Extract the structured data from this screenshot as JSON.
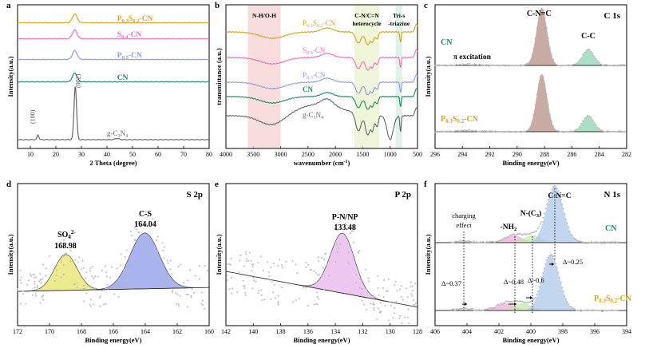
{
  "chart_data": [
    {
      "id": "a",
      "type": "line",
      "panel_label": "a",
      "xlabel": "2 Theta (degree)",
      "ylabel": "Intensity(a.u.)",
      "xlim": [
        5,
        80
      ],
      "xticks": [
        "10",
        "20",
        "30",
        "40",
        "50",
        "60",
        "70",
        "80"
      ],
      "series": [
        {
          "name": "P0.3S0.2-CN",
          "label": "P",
          "sub1": "0.3",
          "mid": "S",
          "sub2": "0.2",
          "suffix": "-CN",
          "color": "#d9a21b",
          "peak_2theta": 27.4
        },
        {
          "name": "S0.4-CN",
          "label": "S",
          "sub1": "0.4",
          "suffix": "-CN",
          "color": "#ea6fb8",
          "peak_2theta": 27.4
        },
        {
          "name": "P0.5-CN",
          "label": "P",
          "sub1": "0.5",
          "suffix": "-CN",
          "color": "#8d9be0",
          "peak_2theta": 27.4
        },
        {
          "name": "CN",
          "label": "CN",
          "color": "#1f8a5a",
          "peak_2theta": 27.4
        },
        {
          "name": "g-C3N4",
          "label": "g-C",
          "sub1": "3",
          "mid": "N",
          "sub2": "4",
          "color": "#666666",
          "peak_2theta": 27.6
        }
      ],
      "annotations": [
        "(100)",
        "(002)"
      ]
    },
    {
      "id": "b",
      "type": "line",
      "panel_label": "b",
      "xlabel": "wavenumber (cm",
      "xlabel_sup": "-1",
      "xlabel_end": ")",
      "ylabel": "transmittance (a.u.)",
      "xlim": [
        4000,
        500
      ],
      "xticks": [
        "4000",
        "3500",
        "3000",
        "2500",
        "2000",
        "1500",
        "1000",
        "500"
      ],
      "regions": [
        {
          "label": "N-H/O-H",
          "from": 3600,
          "to": 3000,
          "color": "#f7d3d6"
        },
        {
          "label": "C-N/C=N",
          "label2": "heterocycle",
          "from": 1650,
          "to": 1200,
          "color": "#eaf3cf"
        },
        {
          "label": "Tri-s",
          "label2": "-triazine",
          "from": 900,
          "to": 780,
          "color": "#d6efe5"
        }
      ],
      "series": [
        {
          "name": "P0.3S0.2-CN",
          "label": "P",
          "sub1": "0.3",
          "mid": "S",
          "sub2": "0.2",
          "suffix": "-CN",
          "color": "#d9a21b"
        },
        {
          "name": "S0.4-CN",
          "label": "S",
          "sub1": "0.4",
          "suffix": "-CN",
          "color": "#ea6fb8"
        },
        {
          "name": "P0.5-CN",
          "label": "P",
          "sub1": "0.5",
          "suffix": "-CN",
          "color": "#8d9be0"
        },
        {
          "name": "CN",
          "label": "CN",
          "color": "#1f8a5a"
        },
        {
          "name": "g-C3N4",
          "label": "g-C",
          "sub1": "3",
          "mid": "N",
          "sub2": "4",
          "color": "#666666"
        }
      ]
    },
    {
      "id": "c",
      "type": "line",
      "panel_label": "c",
      "title": "C 1s",
      "xlabel": "Binding energy(eV)",
      "ylabel": "Intensity(a.u.)",
      "xlim": [
        296,
        282
      ],
      "xticks": [
        "296",
        "294",
        "292",
        "290",
        "288",
        "286",
        "284",
        "282"
      ],
      "peaks": [
        {
          "label": "C-N=C",
          "center_eV": 288.2,
          "color": "#a37568"
        },
        {
          "label": "C-C",
          "center_eV": 284.8,
          "color": "#8fd3b4"
        },
        {
          "label": "π excitation",
          "center_eV": 293.5
        }
      ],
      "samples": [
        {
          "name": "CN",
          "label": "CN",
          "color": "#1f8a5a"
        },
        {
          "name": "P0.3S0.2-CN",
          "label": "P",
          "sub1": "0.3",
          "mid": "S",
          "sub2": "0.2",
          "suffix": "-CN",
          "color": "#d9a21b"
        }
      ]
    },
    {
      "id": "d",
      "type": "scatter",
      "panel_label": "d",
      "title": "S 2p",
      "xlabel": "Binding energy(eV)",
      "ylabel": "Intensity(a.u.)",
      "xlim": [
        172,
        160
      ],
      "xticks": [
        "172",
        "170",
        "168",
        "166",
        "164",
        "162",
        "160"
      ],
      "peaks": [
        {
          "name": "SO4 2-",
          "label": "SO",
          "sub": "4",
          "sup": "2-",
          "value_label": "168.98",
          "center_eV": 168.98,
          "color": "#eeeb8e"
        },
        {
          "name": "C-S",
          "label": "C-S",
          "value_label": "164.04",
          "center_eV": 164.04,
          "color": "#a9b4ef"
        }
      ]
    },
    {
      "id": "e",
      "type": "scatter",
      "panel_label": "e",
      "title": "P 2p",
      "xlabel": "Binding energy(eV)",
      "ylabel": "Intensity(a.u.)",
      "xlim": [
        142,
        128
      ],
      "xticks": [
        "142",
        "140",
        "138",
        "136",
        "134",
        "132",
        "130",
        "128"
      ],
      "peaks": [
        {
          "name": "P-N/NP",
          "label": "P-N/NP",
          "value_label": "133.48",
          "center_eV": 133.48,
          "color": "#edc7ef"
        }
      ]
    },
    {
      "id": "f",
      "type": "line",
      "panel_label": "f",
      "title": "N 1s",
      "xlabel": "Binding energy(eV)",
      "ylabel": "Intensity(a.u.)",
      "xlim": [
        406,
        394
      ],
      "xticks": [
        "406",
        "404",
        "402",
        "400",
        "398",
        "396",
        "394"
      ],
      "peaks": [
        {
          "label": "charging",
          "label2": "effect",
          "center_eV": 404.2
        },
        {
          "label": "-NH",
          "sub": "2",
          "center_eV": 401.1,
          "color": "#f0a6d4"
        },
        {
          "label": "N-(C",
          "sub": "3",
          "suffix": ")",
          "center_eV": 399.9,
          "color": "#bfe9a6"
        },
        {
          "label": "C-N=C",
          "center_eV": 398.5,
          "color": "#a9c4ea"
        }
      ],
      "shifts": [
        {
          "label": "Δ~0.37",
          "eV": 0.37
        },
        {
          "label": "Δ~0.48",
          "eV": 0.48
        },
        {
          "label": "Δ~0.6",
          "eV": 0.6
        },
        {
          "label": "Δ~0.25",
          "eV": 0.25
        }
      ],
      "samples": [
        {
          "name": "CN",
          "label": "CN",
          "color": "#1f8a5a"
        },
        {
          "name": "P0.3S0.2-CN",
          "label": "P",
          "sub1": "0.3",
          "mid": "S",
          "sub2": "0.2",
          "suffix": "-CN",
          "color": "#d9a21b"
        }
      ]
    }
  ]
}
